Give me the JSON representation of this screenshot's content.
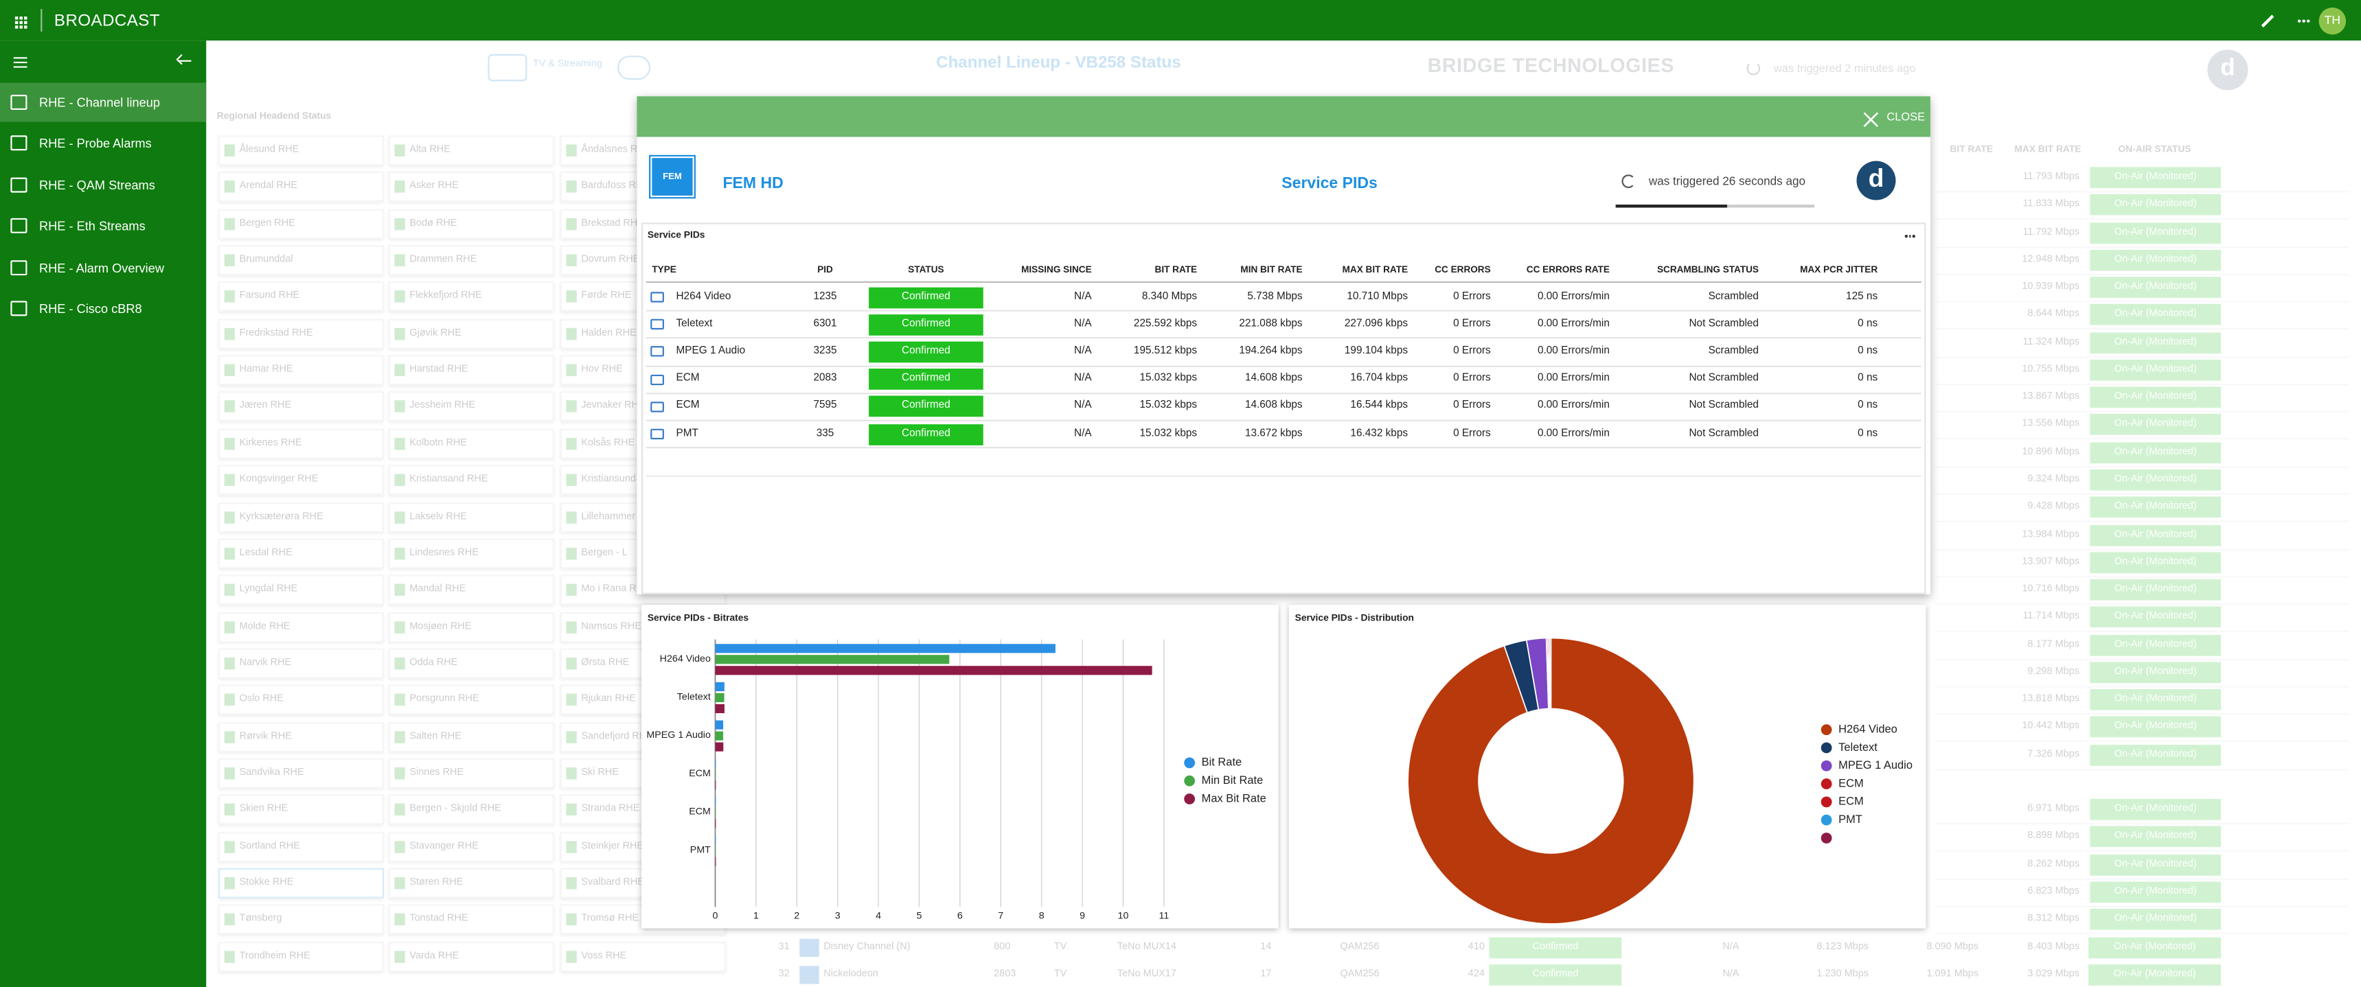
{
  "topbar": {
    "title": "BROADCAST",
    "avatar": "TH"
  },
  "sidebar": {
    "items": [
      "RHE - Channel lineup",
      "RHE - Probe Alarms",
      "RHE - QAM Streams",
      "RHE - Eth Streams",
      "RHE - Alarm Overview",
      "RHE - Cisco cBR8"
    ]
  },
  "background": {
    "logo_text": "TV & Streaming",
    "title": "Channel Lineup - VB258 Status",
    "brand": "BRIDGE TECHNOLOGIES",
    "triggered": "was triggered 2 minutes ago",
    "avatar": "d",
    "section": "Regional Headend Status",
    "headends": [
      [
        "Ålesund RHE",
        "Arendal RHE",
        "Bergen RHE",
        "Brumunddal",
        "Farsund RHE",
        "Fredrikstad RHE",
        "Hamar RHE",
        "Jæren RHE",
        "Kirkenes RHE",
        "Kongsvinger RHE",
        "Kyrksæterøra RHE",
        "Lesdal RHE",
        "Lyngdal RHE",
        "Molde RHE",
        "Narvik RHE",
        "Oslo RHE",
        "Rørvik RHE",
        "Sandvika RHE",
        "Skien RHE",
        "Sortland RHE",
        "Stokke RHE",
        "Tønsberg",
        "Trondheim RHE"
      ],
      [
        "Alta RHE",
        "Asker RHE",
        "Bodø RHE",
        "Drammen RHE",
        "Flekkefjord RHE",
        "Gjøvik RHE",
        "Harstad RHE",
        "Jessheim RHE",
        "Kolbotn RHE",
        "Kristiansand RHE",
        "Lakselv RHE",
        "Lindesnes RHE",
        "Mandal RHE",
        "Mosjøen RHE",
        "Odda RHE",
        "Porsgrunn RHE",
        "Salten RHE",
        "Sinnes RHE",
        "Bergen - Skjold RHE",
        "Stavanger RHE",
        "Støren RHE",
        "Tonstad RHE",
        "Varda RHE"
      ],
      [
        "Åndalsnes RHE",
        "Bardufoss RHE",
        "Brekstad RHE",
        "Dovrum RHE",
        "Førde RHE",
        "Halden RHE",
        "Hov RHE",
        "Jevnaker RHE",
        "Kolsås RHE",
        "Kristiansund RHE",
        "Lillehammer RHE",
        "Bergen - L",
        "Mo i Rana RHE",
        "Namsos RHE",
        "Ørsta RHE",
        "Rjukan RHE",
        "Sandefjord RHE",
        "Ski RHE",
        "Stranda RHE",
        "Steinkjer RHE",
        "Svalbard RHE",
        "Tromsø RHE",
        "Voss RHE"
      ]
    ],
    "table": {
      "headers": [
        "BIT RATE",
        "MAX BIT RATE",
        "ON-AIR STATUS"
      ],
      "max_bit_rates": [
        "11.793 Mbps",
        "11.833 Mbps",
        "11.792 Mbps",
        "12.948 Mbps",
        "10.939 Mbps",
        "8.644 Mbps",
        "11.324 Mbps",
        "10.755 Mbps",
        "13.867 Mbps",
        "13.556 Mbps",
        "10.896 Mbps",
        "9.324 Mbps",
        "9.428 Mbps",
        "13.984 Mbps",
        "13.907 Mbps",
        "10.716 Mbps",
        "11.714 Mbps",
        "8.177 Mbps",
        "9.298 Mbps",
        "13.818 Mbps",
        "10.442 Mbps",
        "7.326 Mbps",
        "6.971 Mbps",
        "8.898 Mbps",
        "8.262 Mbps",
        "6.823 Mbps",
        "8.312 Mbps"
      ],
      "status": "On-Air (Monitored)",
      "rows": [
        [
          "31",
          "Disney Channel (N)",
          "800",
          "TV",
          "TeNo MUX14",
          "14",
          "QAM256",
          "410",
          "Confirmed",
          "N/A",
          "8.123 Mbps",
          "8.090 Mbps",
          "8.403 Mbps",
          "On-Air (Monitored)"
        ],
        [
          "32",
          "Nickelodeon",
          "2803",
          "TV",
          "TeNo MUX17",
          "17",
          "QAM256",
          "424",
          "Confirmed",
          "N/A",
          "1.230 Mbps",
          "1.091 Mbps",
          "3.029 Mbps",
          "On-Air (Monitored)"
        ]
      ]
    }
  },
  "modal": {
    "close": "CLOSE",
    "logo": "FEM",
    "channel": "FEM HD",
    "title": "Service PIDs",
    "triggered": "was triggered 26 seconds ago",
    "avatar": "d",
    "table": {
      "title": "Service PIDs",
      "headers": [
        "TYPE",
        "PID",
        "STATUS",
        "MISSING SINCE",
        "BIT RATE",
        "MIN BIT RATE",
        "MAX BIT RATE",
        "CC ERRORS",
        "CC ERRORS RATE",
        "SCRAMBLING STATUS",
        "MAX PCR JITTER"
      ],
      "rows": [
        [
          "H264 Video",
          "1235",
          "Confirmed",
          "N/A",
          "8.340 Mbps",
          "5.738 Mbps",
          "10.710 Mbps",
          "0 Errors",
          "0.00 Errors/min",
          "Scrambled",
          "125 ns"
        ],
        [
          "Teletext",
          "6301",
          "Confirmed",
          "N/A",
          "225.592 kbps",
          "221.088 kbps",
          "227.096 kbps",
          "0 Errors",
          "0.00 Errors/min",
          "Not Scrambled",
          "0 ns"
        ],
        [
          "MPEG 1 Audio",
          "3235",
          "Confirmed",
          "N/A",
          "195.512 kbps",
          "194.264 kbps",
          "199.104 kbps",
          "0 Errors",
          "0.00 Errors/min",
          "Scrambled",
          "0 ns"
        ],
        [
          "ECM",
          "2083",
          "Confirmed",
          "N/A",
          "15.032 kbps",
          "14.608 kbps",
          "16.704 kbps",
          "0 Errors",
          "0.00 Errors/min",
          "Not Scrambled",
          "0 ns"
        ],
        [
          "ECM",
          "7595",
          "Confirmed",
          "N/A",
          "15.032 kbps",
          "14.608 kbps",
          "16.544 kbps",
          "0 Errors",
          "0.00 Errors/min",
          "Not Scrambled",
          "0 ns"
        ],
        [
          "PMT",
          "335",
          "Confirmed",
          "N/A",
          "15.032 kbps",
          "13.672 kbps",
          "16.432 kbps",
          "0 Errors",
          "0.00 Errors/min",
          "Not Scrambled",
          "0 ns"
        ]
      ]
    }
  },
  "chart_data": [
    {
      "type": "hbar",
      "title": "Service PIDs - Bitrates",
      "categories": [
        "H264 Video",
        "Teletext",
        "MPEG 1 Audio",
        "ECM",
        "ECM",
        "PMT",
        null
      ],
      "series": [
        {
          "name": "Bit Rate",
          "color": "#2b8fe6",
          "values": [
            8.34,
            0.225592,
            0.195512,
            0.015032,
            0.015032,
            0.015032,
            null
          ]
        },
        {
          "name": "Min Bit Rate",
          "color": "#45a845",
          "values": [
            5.738,
            0.221088,
            0.194264,
            0.014608,
            0.014608,
            0.013672,
            null
          ]
        },
        {
          "name": "Max Bit Rate",
          "color": "#8e1b45",
          "values": [
            10.71,
            0.227096,
            0.199104,
            0.016704,
            0.016544,
            0.016432,
            null
          ]
        }
      ],
      "xlim": [
        0,
        11
      ],
      "xticks": [
        0,
        1,
        2,
        3,
        4,
        5,
        6,
        7,
        8,
        9,
        10,
        11
      ],
      "grid": true
    },
    {
      "type": "donut",
      "title": "Service PIDs - Distribution",
      "categories": [
        "H264 Video",
        "Teletext",
        "MPEG 1 Audio",
        "ECM",
        "ECM",
        "PMT",
        null
      ],
      "values": [
        8.34,
        0.225592,
        0.195512,
        0.015032,
        0.015032,
        0.015032,
        null
      ],
      "colors": [
        "#b8390b",
        "#173a66",
        "#7c46c6",
        "#c3171e",
        "#c3171e",
        "#2b9be0",
        "#8e1b45"
      ]
    }
  ]
}
